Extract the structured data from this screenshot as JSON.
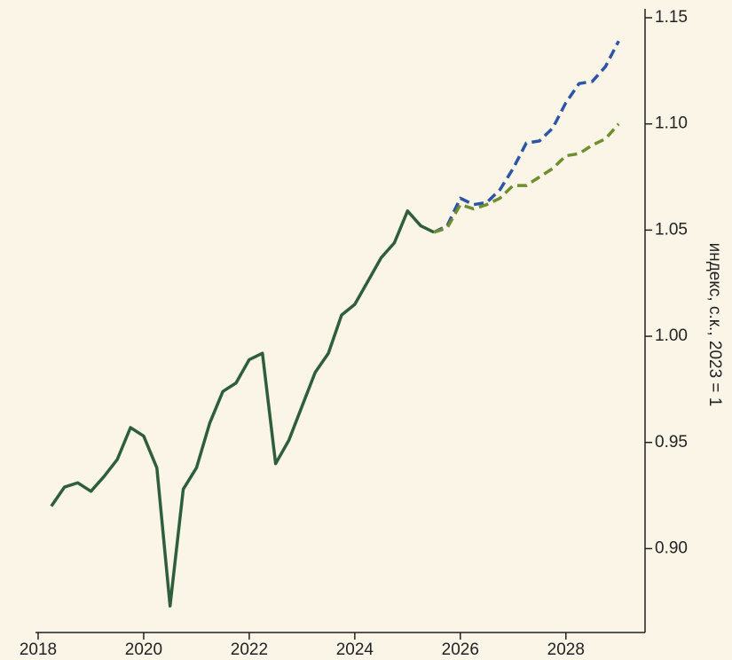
{
  "chart_data": {
    "type": "line",
    "y_label": "индекс, с.к., 2023 = 1",
    "x": [
      2018.25,
      2018.5,
      2018.75,
      2019,
      2019.25,
      2019.5,
      2019.75,
      2020,
      2020.25,
      2020.5,
      2020.75,
      2021,
      2021.25,
      2021.5,
      2021.75,
      2022,
      2022.25,
      2022.5,
      2022.75,
      2023,
      2023.25,
      2023.5,
      2023.75,
      2024,
      2024.25,
      2024.5,
      2024.75,
      2025,
      2025.25,
      2025.5,
      2025.75,
      2026,
      2026.25,
      2026.5,
      2026.75,
      2027,
      2027.25,
      2027.5,
      2027.75,
      2028,
      2028.25,
      2028.5,
      2028.75,
      2029
    ],
    "series": [
      {
        "color": "#2f5e3a",
        "dash": false,
        "values": [
          0.92,
          0.929,
          0.931,
          0.927,
          0.934,
          0.942,
          0.957,
          0.953,
          0.938,
          0.873,
          0.928,
          0.938,
          0.959,
          0.974,
          0.978,
          0.989,
          0.992,
          0.94,
          0.951,
          0.967,
          0.983,
          0.992,
          1.01,
          1.015,
          1.026,
          1.037,
          1.044,
          1.059,
          1.052,
          1.049,
          null,
          null,
          null,
          null,
          null,
          null,
          null,
          null,
          null,
          null,
          null,
          null,
          null,
          null
        ]
      },
      {
        "color": "#2d55a5",
        "dash": true,
        "values": [
          null,
          null,
          null,
          null,
          null,
          null,
          null,
          null,
          null,
          null,
          null,
          null,
          null,
          null,
          null,
          null,
          null,
          null,
          null,
          null,
          null,
          null,
          null,
          null,
          null,
          null,
          null,
          null,
          null,
          1.049,
          1.052,
          1.065,
          1.062,
          1.063,
          1.069,
          1.079,
          1.091,
          1.092,
          1.098,
          1.11,
          1.119,
          1.12,
          1.127,
          1.139
        ]
      },
      {
        "color": "#6f8f2e",
        "dash": true,
        "values": [
          null,
          null,
          null,
          null,
          null,
          null,
          null,
          null,
          null,
          null,
          null,
          null,
          null,
          null,
          null,
          null,
          null,
          null,
          null,
          null,
          null,
          null,
          null,
          null,
          null,
          null,
          null,
          null,
          null,
          1.049,
          1.051,
          1.062,
          1.06,
          1.062,
          1.065,
          1.071,
          1.071,
          1.075,
          1.079,
          1.085,
          1.086,
          1.09,
          1.093,
          1.1
        ]
      }
    ],
    "xlim": [
      2017.95,
      2029.5
    ],
    "xticks": [
      2018,
      2020,
      2022,
      2024,
      2026,
      2028
    ],
    "ylim": [
      0.8605,
      1.15
    ],
    "yticks": [
      {
        "value": 0.9,
        "label": "0.90"
      },
      0.95,
      {
        "value": 1.0,
        "label": "1.00"
      },
      1.05,
      {
        "value": 1.1,
        "label": "1.10"
      },
      1.15
    ]
  }
}
